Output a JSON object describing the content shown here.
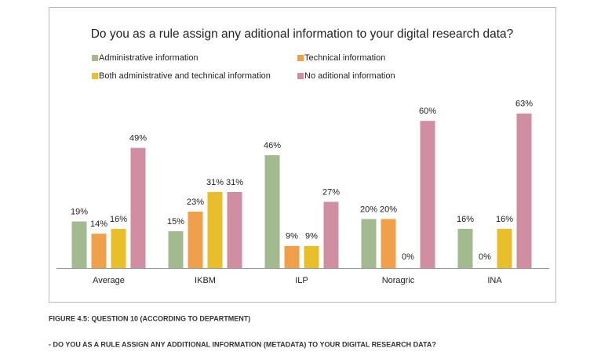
{
  "chart_data": {
    "type": "bar",
    "title": "Do you as a rule assign any aditional information to your digital research data?",
    "categories": [
      "Average",
      "IKBM",
      "ILP",
      "Noragric",
      "INA"
    ],
    "series": [
      {
        "name": "Administrative information",
        "color": "#a3b98f",
        "values": [
          19,
          15,
          46,
          20,
          16
        ],
        "value_labels": [
          "19%",
          "15%",
          "46%",
          "20%",
          "16%"
        ]
      },
      {
        "name": "Technical information",
        "color": "#f0a04b",
        "values": [
          14,
          23,
          9,
          20,
          0
        ],
        "value_labels": [
          "14%",
          "23%",
          "9%",
          "20%",
          "0%"
        ]
      },
      {
        "name": "Both administrative and technical information",
        "color": "#e8bf2a",
        "values": [
          16,
          31,
          9,
          0,
          16
        ],
        "value_labels": [
          "16%",
          "31%",
          "9%",
          "0%",
          "16%"
        ]
      },
      {
        "name": "No aditional information",
        "color": "#d08ea2",
        "values": [
          49,
          31,
          27,
          60,
          63
        ],
        "value_labels": [
          "49%",
          "31%",
          "27%",
          "60%",
          "63%"
        ]
      }
    ]
  },
  "caption": {
    "figure": "FIGURE 4.5: QUESTION 10 (ACCORDING TO DEPARTMENT)",
    "question": "- DO YOU AS A RULE ASSIGN ANY ADDITIONAL INFORMATION (METADATA) TO YOUR DIGITAL RESEARCH DATA?"
  }
}
